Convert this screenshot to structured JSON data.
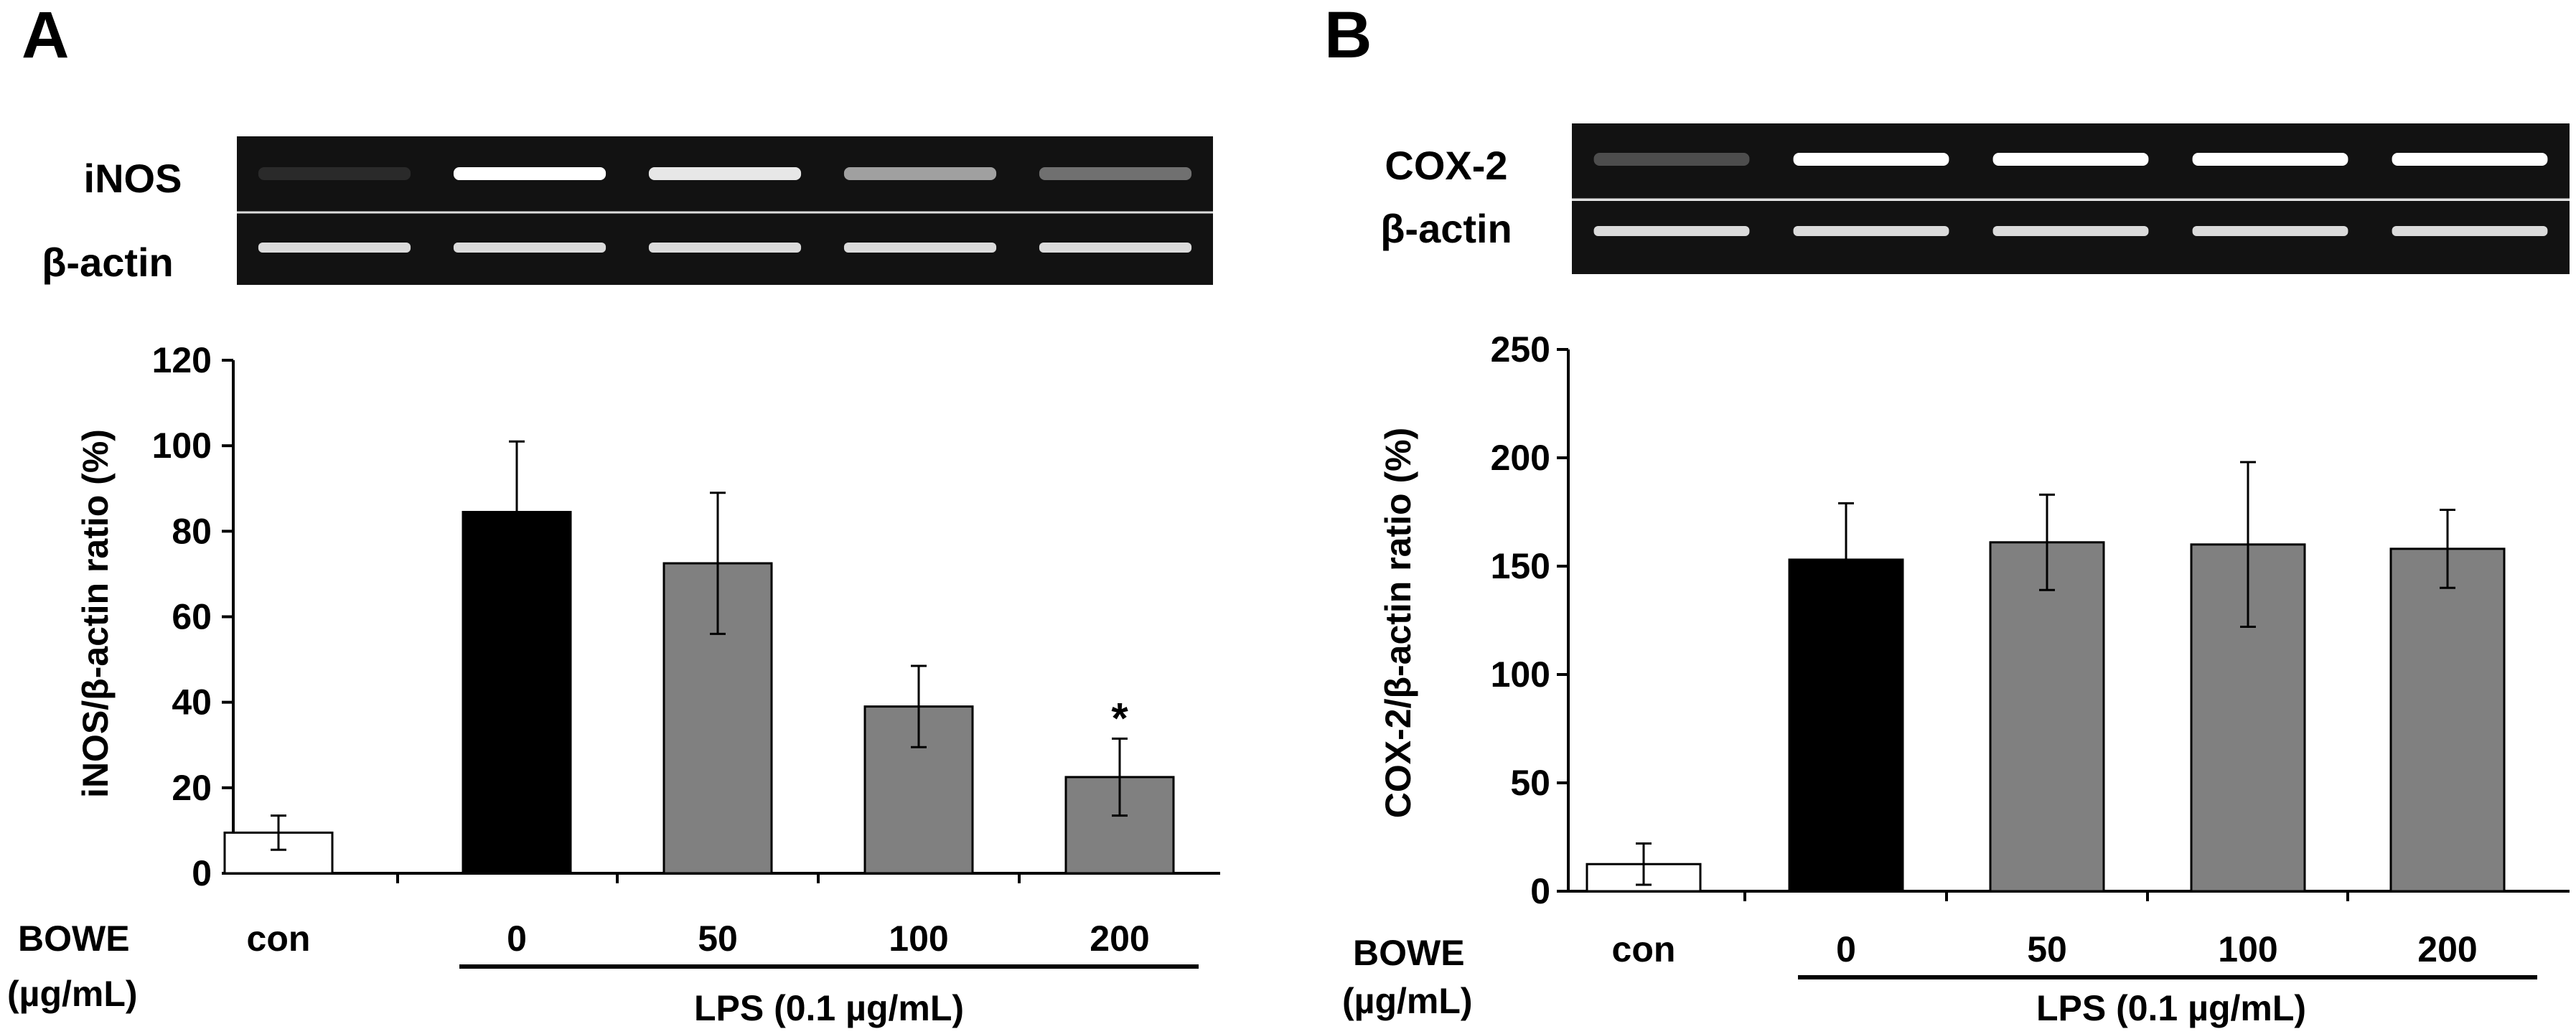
{
  "panels": [
    {
      "letter": "A",
      "gel": {
        "top_label": "iNOS",
        "bottom_label": "β-actin",
        "top_intensity": [
          0.1,
          1.0,
          0.9,
          0.6,
          0.4
        ]
      },
      "treatment": {
        "line1": "BOWE",
        "line2": "(µg/mL)",
        "lps": "LPS (0.1 µg/mL)"
      },
      "chart_data": {
        "type": "bar",
        "categories": [
          "con",
          "0",
          "50",
          "100",
          "200"
        ],
        "values": [
          9.5,
          84.5,
          72.5,
          39,
          22.5
        ],
        "errors": [
          4,
          16.5,
          16.5,
          9.5,
          9
        ],
        "colors": [
          "#ffffff",
          "#000000",
          "#808080",
          "#808080",
          "#808080"
        ],
        "ylabel": "iNOS/β-actin ratio (%)",
        "ylim": [
          0,
          120
        ],
        "yticks": [
          "0",
          "20",
          "40",
          "60",
          "80",
          "100",
          "120"
        ],
        "annotations": [
          {
            "category": "200",
            "text": "*"
          }
        ]
      }
    },
    {
      "letter": "B",
      "gel": {
        "top_label": "COX-2",
        "bottom_label": "β-actin",
        "top_intensity": [
          0.25,
          1.0,
          1.0,
          1.0,
          1.0
        ]
      },
      "treatment": {
        "line1": "BOWE",
        "line2": "(µg/mL)",
        "lps": "LPS (0.1 µg/mL)"
      },
      "chart_data": {
        "type": "bar",
        "categories": [
          "con",
          "0",
          "50",
          "100",
          "200"
        ],
        "values": [
          12.5,
          153,
          161,
          160,
          158
        ],
        "errors": [
          9.5,
          26,
          22,
          38,
          18
        ],
        "colors": [
          "#ffffff",
          "#000000",
          "#808080",
          "#808080",
          "#808080"
        ],
        "ylabel": "COX-2/β-actin ratio (%)",
        "ylim": [
          0,
          250
        ],
        "yticks": [
          "0",
          "50",
          "100",
          "150",
          "200",
          "250"
        ],
        "annotations": []
      }
    }
  ]
}
